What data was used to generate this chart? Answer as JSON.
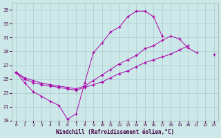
{
  "xlabel": "Windchill (Refroidissement éolien,°C)",
  "background_color": "#cce8e8",
  "grid_color": "#aacccc",
  "line_color": "#aa00aa",
  "xlim": [
    -0.5,
    23.5
  ],
  "ylim": [
    19,
    36
  ],
  "yticks": [
    19,
    21,
    23,
    25,
    27,
    29,
    31,
    33,
    35
  ],
  "xticks": [
    0,
    1,
    2,
    3,
    4,
    5,
    6,
    7,
    8,
    9,
    10,
    11,
    12,
    13,
    14,
    15,
    16,
    17,
    18,
    19,
    20,
    21,
    22,
    23
  ],
  "series1_x": [
    0,
    1,
    2,
    3,
    4,
    5,
    6,
    7,
    8,
    9,
    10,
    11,
    12,
    13,
    14,
    15,
    16,
    17,
    18,
    19
  ],
  "series1_y": [
    26.0,
    24.5,
    23.2,
    22.5,
    21.8,
    21.2,
    19.2,
    20.0,
    24.5,
    28.8,
    30.2,
    31.8,
    32.5,
    34.0,
    34.8,
    34.8,
    34.0,
    31.2,
    null,
    null
  ],
  "series2_x": [
    0,
    1,
    2,
    3,
    4,
    5,
    6,
    7,
    8,
    9,
    10,
    11,
    12,
    13,
    14,
    15,
    16,
    17,
    18,
    19,
    20,
    21,
    22,
    23
  ],
  "series2_y": [
    26.0,
    25.2,
    24.8,
    24.4,
    24.2,
    24.0,
    23.8,
    23.6,
    24.0,
    24.8,
    25.6,
    26.4,
    27.2,
    27.8,
    28.4,
    29.4,
    29.8,
    30.6,
    31.2,
    30.8,
    29.5,
    28.8,
    null,
    null
  ],
  "series3_x": [
    0,
    1,
    2,
    3,
    4,
    5,
    6,
    7,
    8,
    9,
    10,
    11,
    12,
    13,
    14,
    15,
    16,
    17,
    18,
    19,
    20,
    21,
    22,
    23
  ],
  "series3_y": [
    26.0,
    25.0,
    24.5,
    24.2,
    24.0,
    23.8,
    23.6,
    23.4,
    23.8,
    24.2,
    24.6,
    25.2,
    25.8,
    26.2,
    26.8,
    27.4,
    27.8,
    28.2,
    28.6,
    29.2,
    29.8,
    null,
    null,
    28.5
  ]
}
